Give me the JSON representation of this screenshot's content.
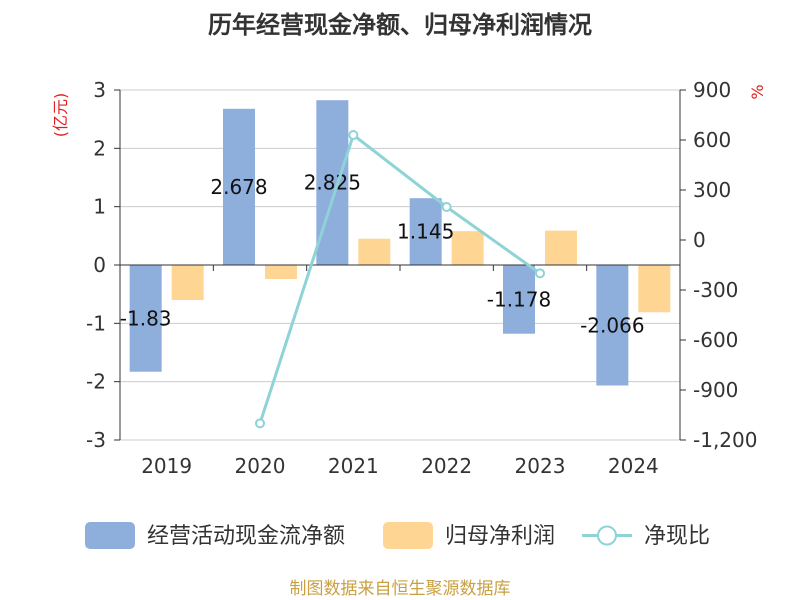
{
  "chart_data": {
    "type": "bar",
    "title": "历年经营现金净额、归母净利润情况",
    "categories": [
      "2019",
      "2020",
      "2021",
      "2022",
      "2023",
      "2024"
    ],
    "ylabel_left": "(亿元)",
    "ylabel_right": "%",
    "ylim_left": [
      -3,
      3
    ],
    "yticks_left": [
      -3,
      -2,
      -1,
      0,
      1,
      2,
      3
    ],
    "ytick_labels_left": [
      "-3",
      "-2",
      "-1",
      "0",
      "1",
      "2",
      "3"
    ],
    "ylim_right": [
      -1200,
      900
    ],
    "yticks_right": [
      -1200,
      -900,
      -600,
      -300,
      0,
      300,
      600,
      900
    ],
    "ytick_labels_right": [
      "-1,200",
      "-900",
      "-600",
      "-300",
      "0",
      "300",
      "600",
      "900"
    ],
    "grid": true,
    "legend_position": "bottom",
    "series": [
      {
        "name": "经营活动现金流净额",
        "type": "bar",
        "axis": "left",
        "color": "#8eaedc",
        "values": [
          -1.83,
          2.678,
          2.825,
          1.145,
          -1.178,
          -2.066
        ],
        "data_labels": [
          "-1.83",
          "2.678",
          "2.825",
          "1.145",
          "-1.178",
          "-2.066"
        ]
      },
      {
        "name": "归母净利润",
        "type": "bar",
        "axis": "left",
        "color": "#ffd593",
        "values": [
          -0.6,
          -0.24,
          0.45,
          0.58,
          0.59,
          -0.81
        ]
      },
      {
        "name": "净现比",
        "type": "line",
        "axis": "right",
        "color": "#8ed3d6",
        "values": [
          null,
          -1100,
          630,
          198,
          -200,
          null
        ]
      }
    ],
    "source_note": "制图数据来自恒生聚源数据库"
  },
  "colors": {
    "title": "#333333",
    "axis_name": "#e02020",
    "source_note": "#c9a043",
    "axis_line": "#333333",
    "gridline": "#cccccc"
  }
}
